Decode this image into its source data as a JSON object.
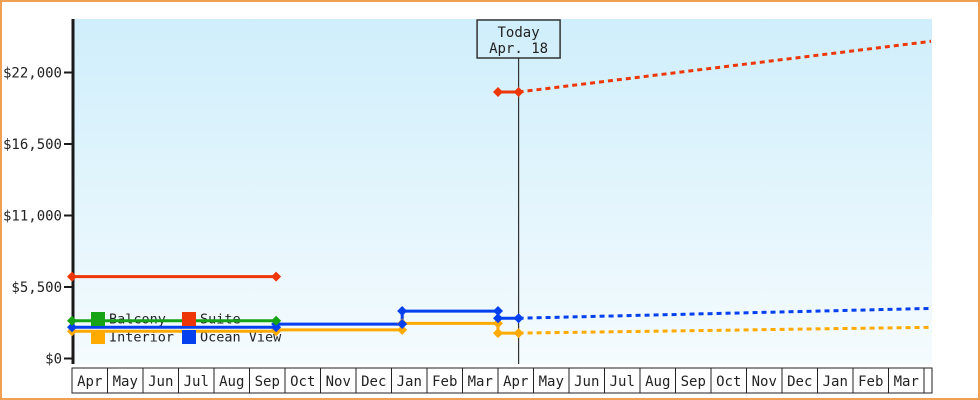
{
  "frame": {
    "border_color": "#f0a052",
    "background": "#ffffff"
  },
  "chart_data": {
    "type": "line",
    "title": "",
    "description": "Cruise cabin price history and forecast by cabin category",
    "colors": {
      "plot_bg_top": "#cfeefb",
      "plot_bg_bottom": "#f5fbfe",
      "axis": "#1a1a1a",
      "text": "#222222",
      "today_line": "#333333"
    },
    "y_axis": {
      "range": [
        0,
        26000
      ],
      "ticks": [
        {
          "value": 0,
          "label": "$0"
        },
        {
          "value": 5500,
          "label": "$5,500"
        },
        {
          "value": 11000,
          "label": "$11,000"
        },
        {
          "value": 16500,
          "label": "$16,500"
        },
        {
          "value": 22000,
          "label": "$22,000"
        }
      ]
    },
    "x_axis": {
      "months": [
        "Apr",
        "May",
        "Jun",
        "Jul",
        "Aug",
        "Sep",
        "Oct",
        "Nov",
        "Dec",
        "Jan",
        "Feb",
        "Mar",
        "Apr",
        "May",
        "Jun",
        "Jul",
        "Aug",
        "Sep",
        "Oct",
        "Nov",
        "Dec",
        "Jan",
        "Feb",
        "Mar"
      ],
      "trailing_empty_cell": true
    },
    "today_marker": {
      "line1": "Today",
      "line2": "Apr. 18",
      "month_position": 12.58
    },
    "legend": {
      "rows": [
        [
          {
            "label": "Balcony",
            "color": "#16a316"
          },
          {
            "label": "Suite",
            "color": "#ee3709"
          }
        ],
        [
          {
            "label": "Interior",
            "color": "#ffaa00"
          },
          {
            "label": "Ocean View",
            "color": "#0540ee"
          }
        ]
      ]
    },
    "series": [
      {
        "name": "Interior",
        "color": "#ffaa00",
        "segments": [
          {
            "style": "solid",
            "points": [
              [
                0,
                2100
              ],
              [
                5.75,
                2100
              ],
              [
                5.75,
                2200
              ],
              [
                9.3,
                2200
              ],
              [
                9.3,
                2700
              ],
              [
                12,
                2700
              ],
              [
                12,
                1950
              ],
              [
                12.58,
                1950
              ]
            ]
          },
          {
            "style": "dashed",
            "points": [
              [
                12.58,
                1950
              ],
              [
                24.2,
                2400
              ]
            ]
          }
        ]
      },
      {
        "name": "Ocean View",
        "color": "#0540ee",
        "segments": [
          {
            "style": "solid",
            "points": [
              [
                0,
                2400
              ],
              [
                5.75,
                2400
              ],
              [
                5.75,
                2650
              ],
              [
                9.3,
                2650
              ],
              [
                9.3,
                3650
              ],
              [
                12,
                3650
              ],
              [
                12,
                3100
              ],
              [
                12.58,
                3100
              ]
            ]
          },
          {
            "style": "dashed",
            "points": [
              [
                12.58,
                3100
              ],
              [
                24.2,
                3850
              ]
            ]
          }
        ]
      },
      {
        "name": "Balcony",
        "color": "#16a316",
        "segments": [
          {
            "style": "solid",
            "points": [
              [
                0,
                2900
              ],
              [
                5.75,
                2900
              ]
            ]
          }
        ]
      },
      {
        "name": "Suite",
        "color": "#ee3709",
        "segments": [
          {
            "style": "solid",
            "points": [
              [
                0,
                6300
              ],
              [
                5.75,
                6300
              ]
            ]
          },
          {
            "style": "solid",
            "points": [
              [
                12,
                20500
              ],
              [
                12.58,
                20500
              ]
            ]
          },
          {
            "style": "dashed",
            "points": [
              [
                12.58,
                20500
              ],
              [
                24.2,
                24400
              ]
            ]
          }
        ]
      }
    ]
  }
}
